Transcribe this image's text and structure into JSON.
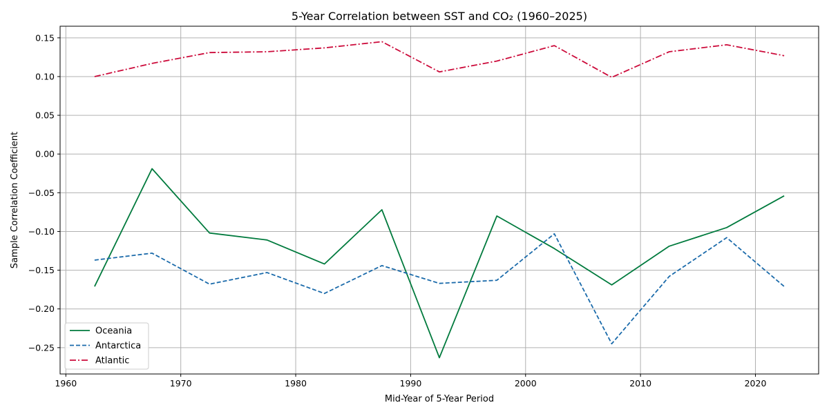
{
  "chart_data": {
    "type": "line",
    "title": "5-Year Correlation between SST and CO₂ (1960–2025)",
    "xlabel": "Mid-Year of 5-Year Period",
    "ylabel": "Sample Correlation Coefficient",
    "x": [
      1962.5,
      1967.5,
      1972.5,
      1977.5,
      1982.5,
      1987.5,
      1992.5,
      1997.5,
      2002.5,
      2007.5,
      2012.5,
      2017.5,
      2022.5
    ],
    "xlim": [
      1959.5,
      2025.5
    ],
    "ylim": [
      -0.284,
      0.165
    ],
    "xticks": [
      1960,
      1970,
      1980,
      1990,
      2000,
      2010,
      2020
    ],
    "yticks": [
      -0.25,
      -0.2,
      -0.15,
      -0.1,
      -0.05,
      0.0,
      0.05,
      0.1,
      0.15
    ],
    "ytick_labels": [
      "−0.25",
      "−0.20",
      "−0.15",
      "−0.10",
      "−0.05",
      "0.00",
      "0.05",
      "0.10",
      "0.15"
    ],
    "grid": true,
    "legend_position": "lower-left",
    "series": [
      {
        "name": "Oceania",
        "color": "#007a3d",
        "dash": "solid",
        "values": [
          -0.171,
          -0.019,
          -0.102,
          -0.111,
          -0.142,
          -0.072,
          -0.263,
          -0.08,
          -0.122,
          -0.169,
          -0.119,
          -0.095,
          -0.054
        ]
      },
      {
        "name": "Antarctica",
        "color": "#1a6aaa",
        "dash": "dashed",
        "values": [
          -0.137,
          -0.128,
          -0.168,
          -0.153,
          -0.18,
          -0.144,
          -0.167,
          -0.163,
          -0.103,
          -0.245,
          -0.158,
          -0.108,
          -0.171
        ]
      },
      {
        "name": "Atlantic",
        "color": "#cc0a3a",
        "dash": "dashdot",
        "values": [
          0.1,
          0.117,
          0.131,
          0.132,
          0.137,
          0.145,
          0.106,
          0.12,
          0.14,
          0.099,
          0.132,
          0.141,
          0.127
        ]
      }
    ]
  }
}
